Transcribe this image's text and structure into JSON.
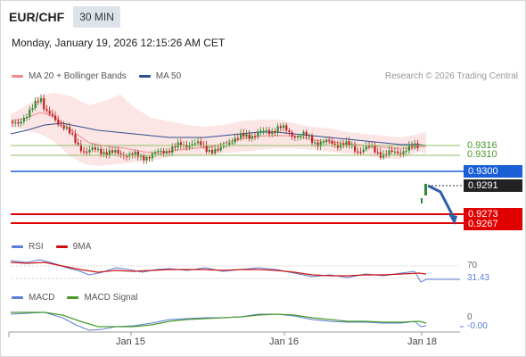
{
  "header": {
    "symbol": "EUR/CHF",
    "timeframe": "30 MIN"
  },
  "datetime": "Monday, January 19, 2026 12:15:26 AM CET",
  "legend": {
    "ma20": {
      "label": "MA 20 + Bollinger Bands",
      "color": "#f08a8a"
    },
    "ma50": {
      "label": "MA 50",
      "color": "#2f4f8f"
    }
  },
  "credit": "Research © 2026 Trading Central",
  "levels": {
    "green1": "0.9316",
    "green2": "0.9310",
    "pivot": "0.9300",
    "last": "0.9291",
    "target1": "0.9273",
    "target2": "0.9267"
  },
  "rsi": {
    "label": "RSI",
    "ma_label": "9MA",
    "upper": "70",
    "value": "31.43",
    "rsi_color": "#5a7fd6",
    "ma_color": "#cc1111"
  },
  "macd": {
    "label": "MACD",
    "signal_label": "MACD Signal",
    "zero": "0",
    "value": "-0.00",
    "macd_color": "#5a7fd6",
    "signal_color": "#4a9a2a"
  },
  "xaxis": [
    "Jan 15",
    "Jan 16",
    "Jan 18"
  ],
  "colors": {
    "up": "#2e8b2e",
    "down": "#c02020",
    "pivot": "#1a5fd6",
    "target": "#e00000",
    "arrow": "#2f5fa8"
  }
}
